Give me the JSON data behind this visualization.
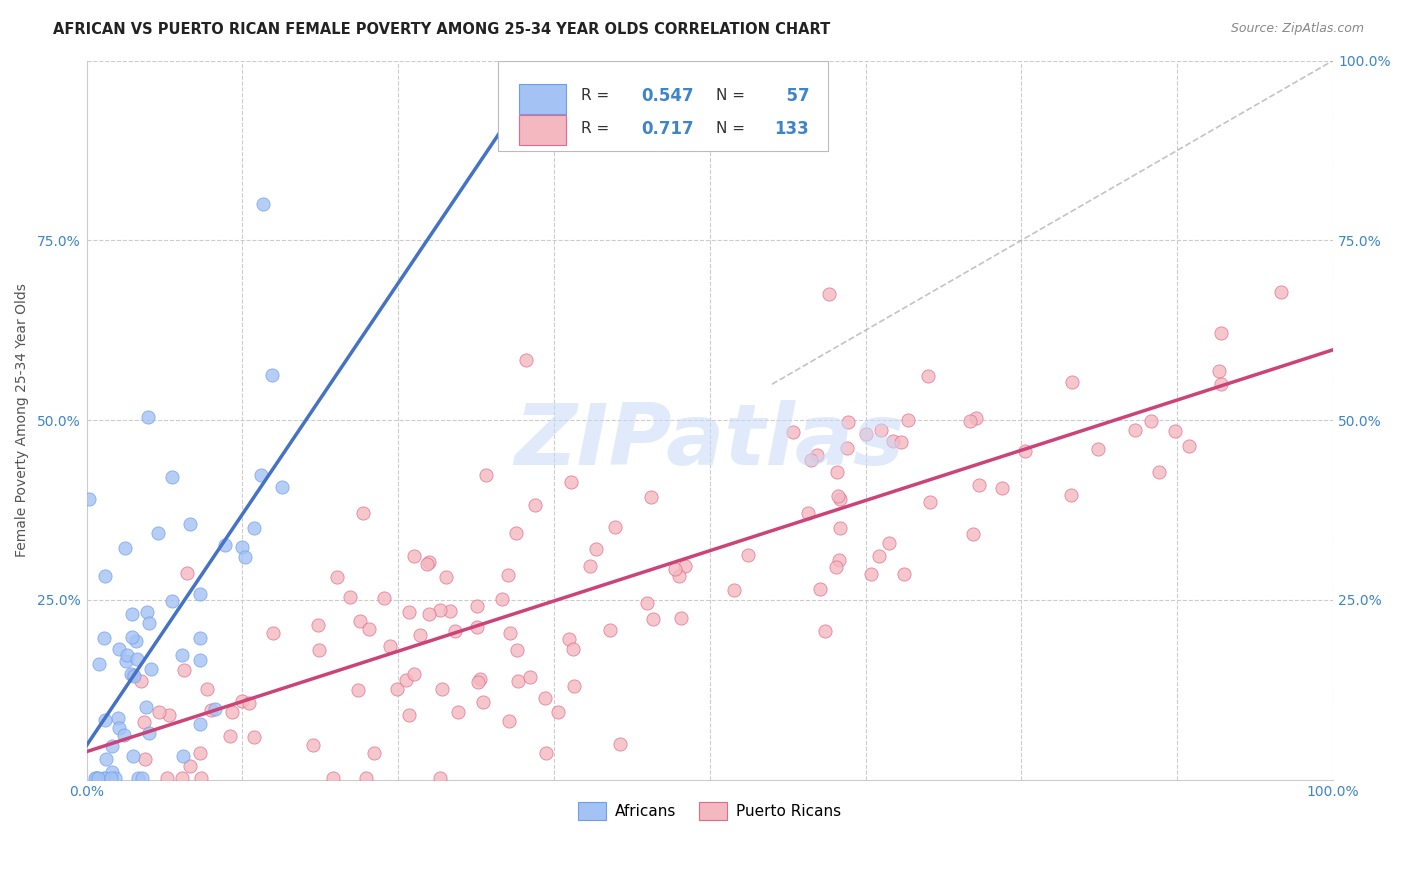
{
  "title": "AFRICAN VS PUERTO RICAN FEMALE POVERTY AMONG 25-34 YEAR OLDS CORRELATION CHART",
  "source": "Source: ZipAtlas.com",
  "ylabel": "Female Poverty Among 25-34 Year Olds",
  "xlim": [
    0,
    1.0
  ],
  "ylim": [
    0,
    1.0
  ],
  "african_R": 0.547,
  "african_N": 57,
  "pr_R": 0.717,
  "pr_N": 133,
  "african_color": "#a4c2f4",
  "african_edge": "#6d9eeb",
  "pr_color": "#f4b8c1",
  "pr_edge": "#e06c8a",
  "african_line_color": "#4472c4",
  "pr_line_color": "#cc4477",
  "diagonal_color": "#aaaaaa",
  "watermark_color": "#c9daf8",
  "watermark_text": "ZIPatlas",
  "background_color": "#ffffff",
  "grid_color": "#cccccc",
  "tick_color": "#3d85c8",
  "label_color": "#555555",
  "title_color": "#222222",
  "source_color": "#888888"
}
